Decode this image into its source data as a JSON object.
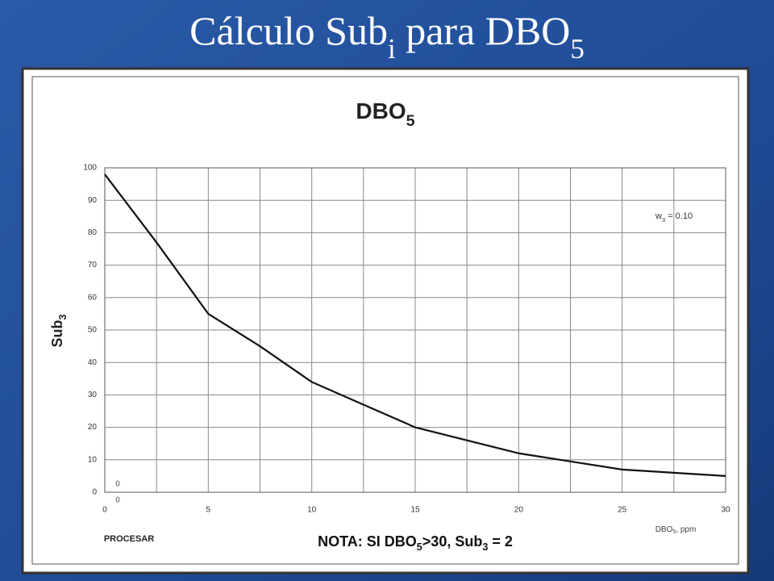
{
  "slide_title": [
    {
      "text": "Cálculo Sub"
    },
    {
      "text": "i",
      "sub": true
    },
    {
      "text": " para DBO"
    },
    {
      "text": "5",
      "sub": true
    }
  ],
  "chart_data": {
    "type": "line",
    "title": [
      {
        "text": "DBO"
      },
      {
        "text": "5",
        "sub": true
      }
    ],
    "y_label": [
      {
        "text": "Sub"
      },
      {
        "text": "3",
        "sub": true
      }
    ],
    "x_label": [
      {
        "text": "DBO"
      },
      {
        "text": "5",
        "sub": true
      },
      {
        "text": ", ppm"
      }
    ],
    "annotation": [
      {
        "text": "w"
      },
      {
        "text": "3",
        "sub": true
      },
      {
        "text": " = 0.10"
      }
    ],
    "note": [
      {
        "text": "NOTA: SI DBO"
      },
      {
        "text": "5",
        "sub": true
      },
      {
        "text": ">30, Sub"
      },
      {
        "text": "3",
        "sub": true
      },
      {
        "text": " = 2"
      }
    ],
    "button": "PROCESAR",
    "origin_inputs": [
      "0",
      "0"
    ],
    "x": [
      0,
      2.5,
      5,
      7.5,
      10,
      12.5,
      15,
      17.5,
      20,
      22.5,
      25,
      27.5,
      30
    ],
    "values": [
      98,
      77,
      55,
      45,
      34,
      27,
      20,
      16,
      12,
      9.5,
      7,
      6,
      5
    ],
    "color": "#111111",
    "xlim": [
      0,
      30
    ],
    "ylim": [
      0,
      100
    ],
    "xticks": [
      0,
      5,
      10,
      15,
      20,
      25,
      30
    ],
    "xgrid": [
      0,
      2.5,
      5,
      7.5,
      10,
      12.5,
      15,
      17.5,
      20,
      22.5,
      25,
      27.5,
      30
    ],
    "yticks": [
      0,
      10,
      20,
      30,
      40,
      50,
      60,
      70,
      80,
      90,
      100
    ],
    "grid": true
  }
}
